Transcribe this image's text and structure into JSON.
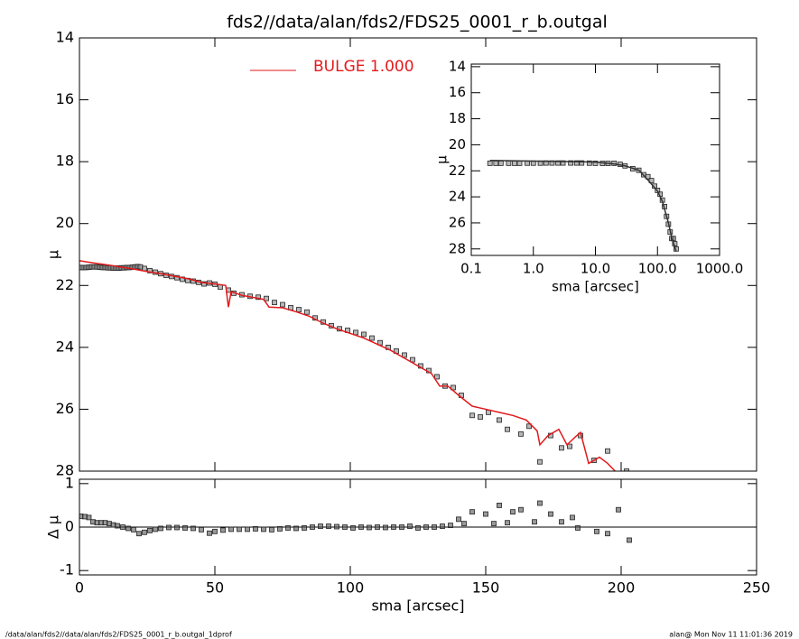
{
  "chart_data": [
    {
      "type": "scatter",
      "title": "fds2//data/alan/fds2/FDS25_0001_r_b.outgal",
      "ylabel": "μ",
      "xlim": [
        0,
        250
      ],
      "ylim": [
        28,
        14
      ],
      "yticks": [
        14,
        16,
        18,
        20,
        22,
        24,
        26,
        28
      ],
      "series": [
        {
          "type": "scatter",
          "color": "#888888",
          "x": [
            0.5,
            1.5,
            2.5,
            3.5,
            4.5,
            5.5,
            6.5,
            7.5,
            8.5,
            9.5,
            10.5,
            11.5,
            12.5,
            13.5,
            14.5,
            15.5,
            16.5,
            17.5,
            18.5,
            19.5,
            20.5,
            21.5,
            22.5,
            24,
            26,
            28,
            30,
            32,
            34,
            36,
            38,
            40,
            42,
            44,
            46,
            48,
            50,
            52,
            55,
            57,
            60,
            63,
            66,
            69,
            72,
            75,
            78,
            81,
            84,
            87,
            90,
            93,
            96,
            99,
            102,
            105,
            108,
            111,
            114,
            117,
            120,
            123,
            126,
            129,
            132,
            135,
            138,
            141,
            145,
            148,
            151,
            155,
            158,
            163,
            166,
            170,
            174,
            178,
            181,
            185,
            190,
            195,
            202
          ],
          "values": [
            21.42,
            21.42,
            21.42,
            21.41,
            21.4,
            21.4,
            21.4,
            21.41,
            21.42,
            21.42,
            21.43,
            21.43,
            21.44,
            21.44,
            21.44,
            21.43,
            21.43,
            21.42,
            21.42,
            21.41,
            21.4,
            21.39,
            21.4,
            21.45,
            21.52,
            21.57,
            21.62,
            21.67,
            21.71,
            21.75,
            21.8,
            21.84,
            21.86,
            21.9,
            21.95,
            21.92,
            21.96,
            22.05,
            22.15,
            22.25,
            22.3,
            22.35,
            22.38,
            22.42,
            22.55,
            22.62,
            22.72,
            22.78,
            22.86,
            23.05,
            23.18,
            23.3,
            23.4,
            23.45,
            23.52,
            23.58,
            23.7,
            23.85,
            24.0,
            24.12,
            24.25,
            24.4,
            24.6,
            24.75,
            24.95,
            25.25,
            25.3,
            25.55,
            26.2,
            26.25,
            26.1,
            26.35,
            26.65,
            26.8,
            26.55,
            27.7,
            26.85,
            27.25,
            27.2,
            26.85,
            27.65,
            27.35,
            28.0
          ]
        },
        {
          "type": "line",
          "name": "BULGE  1.000",
          "color": "#e31a1c",
          "x": [
            0,
            5,
            10,
            15,
            20,
            25,
            30,
            35,
            40,
            45,
            50,
            54,
            55,
            56,
            60,
            65,
            68,
            70,
            75,
            80,
            85,
            90,
            95,
            100,
            105,
            110,
            115,
            120,
            125,
            130,
            133,
            136,
            140,
            145,
            150,
            155,
            160,
            165,
            169,
            170,
            173,
            177,
            180,
            183,
            185,
            188,
            192,
            195,
            200
          ],
          "values": [
            21.2,
            21.27,
            21.33,
            21.4,
            21.47,
            21.55,
            21.62,
            21.7,
            21.78,
            21.9,
            21.95,
            22.0,
            22.7,
            22.2,
            22.32,
            22.4,
            22.45,
            22.7,
            22.72,
            22.85,
            23.0,
            23.22,
            23.4,
            23.55,
            23.7,
            23.9,
            24.1,
            24.35,
            24.6,
            24.85,
            25.25,
            25.25,
            25.55,
            25.9,
            26.0,
            26.1,
            26.2,
            26.35,
            26.7,
            27.15,
            26.85,
            26.65,
            27.15,
            26.9,
            26.75,
            27.75,
            27.55,
            27.75,
            28.2
          ]
        }
      ]
    },
    {
      "type": "scatter",
      "ylabel": "Δ μ",
      "xlabel": "sma [arcsec]",
      "xlim": [
        0,
        250
      ],
      "xticks": [
        0,
        50,
        100,
        150,
        200,
        250
      ],
      "ylim": [
        -1.1,
        1.1
      ],
      "yticks": [
        -1,
        0,
        1
      ],
      "hline": 0,
      "series": [
        {
          "type": "scatter",
          "color": "#555555",
          "x": [
            0.5,
            2,
            3.5,
            5,
            6.5,
            8,
            9.5,
            11,
            12.5,
            14,
            16,
            18,
            20,
            22,
            24,
            26,
            28,
            30,
            33,
            36,
            39,
            42,
            45,
            48,
            50,
            53,
            56,
            59,
            62,
            65,
            68,
            71,
            74,
            77,
            80,
            83,
            86,
            89,
            92,
            95,
            98,
            101,
            104,
            107,
            110,
            113,
            116,
            119,
            122,
            125,
            128,
            131,
            134,
            137,
            140,
            142,
            145,
            150,
            153,
            155,
            158,
            160,
            163,
            168,
            170,
            174,
            178,
            182,
            184,
            191,
            195,
            199,
            203
          ],
          "values": [
            0.25,
            0.24,
            0.22,
            0.12,
            0.1,
            0.1,
            0.1,
            0.08,
            0.05,
            0.03,
            0.0,
            -0.03,
            -0.06,
            -0.15,
            -0.12,
            -0.08,
            -0.05,
            -0.03,
            -0.01,
            -0.01,
            -0.02,
            -0.03,
            -0.06,
            -0.14,
            -0.1,
            -0.07,
            -0.05,
            -0.05,
            -0.05,
            -0.04,
            -0.05,
            -0.06,
            -0.04,
            -0.02,
            -0.03,
            -0.02,
            0.0,
            0.02,
            0.02,
            0.01,
            0.0,
            -0.02,
            0.0,
            -0.01,
            0.0,
            -0.01,
            0.0,
            0.0,
            0.02,
            -0.02,
            0.0,
            0.0,
            0.02,
            0.04,
            0.18,
            0.08,
            0.35,
            0.3,
            0.08,
            0.5,
            0.1,
            0.35,
            0.4,
            0.12,
            0.55,
            0.3,
            0.12,
            0.22,
            -0.02,
            -0.1,
            -0.15,
            0.4,
            -0.3
          ]
        }
      ]
    },
    {
      "type": "scatter",
      "ylabel": "μ",
      "xlabel": "sma [arcsec]",
      "xlog": true,
      "xlim": [
        0.1,
        1000
      ],
      "xticks": [
        {
          "value": 0.1,
          "label": "0.1"
        },
        {
          "value": 1,
          "label": "1.0"
        },
        {
          "value": 10,
          "label": "10.0"
        },
        {
          "value": 100,
          "label": "100.0"
        },
        {
          "value": 1000,
          "label": "1000.0"
        }
      ],
      "ylim": [
        28.5,
        13.8
      ],
      "yticks": [
        14,
        16,
        18,
        20,
        22,
        24,
        26,
        28
      ],
      "series": [
        {
          "type": "scatter",
          "color": "#888888",
          "x": [
            0.2,
            0.25,
            0.3,
            0.4,
            0.5,
            0.6,
            0.8,
            1,
            1.3,
            1.6,
            2,
            2.5,
            3,
            4,
            5,
            6,
            8,
            10,
            13,
            16,
            20,
            25,
            30,
            40,
            50,
            60,
            70,
            80,
            90,
            100,
            110,
            120,
            130,
            140,
            150,
            160,
            170,
            180,
            190,
            200
          ],
          "values": [
            21.42,
            21.42,
            21.42,
            21.42,
            21.42,
            21.42,
            21.41,
            21.41,
            21.41,
            21.4,
            21.4,
            21.4,
            21.4,
            21.4,
            21.4,
            21.4,
            21.41,
            21.42,
            21.43,
            21.43,
            21.42,
            21.5,
            21.62,
            21.84,
            21.96,
            22.3,
            22.45,
            22.75,
            23.18,
            23.5,
            23.8,
            24.25,
            24.75,
            25.5,
            26.1,
            26.7,
            27.2,
            27.2,
            27.6,
            28.0
          ]
        },
        {
          "type": "line",
          "color": "#333333",
          "x": [
            0.2,
            1,
            5,
            10,
            20,
            30,
            50,
            70,
            100,
            120,
            150,
            170,
            200
          ],
          "values": [
            21.2,
            21.25,
            21.3,
            21.33,
            21.47,
            21.62,
            21.95,
            22.7,
            23.55,
            24.35,
            26.0,
            27.15,
            28.2
          ]
        }
      ]
    }
  ],
  "footer": {
    "left": "/data/alan/fds2//data/alan/fds2/FDS25_0001_r_b.outgal_1dprof",
    "right": "alan@  Mon Nov 11 11:01:36 2019"
  }
}
